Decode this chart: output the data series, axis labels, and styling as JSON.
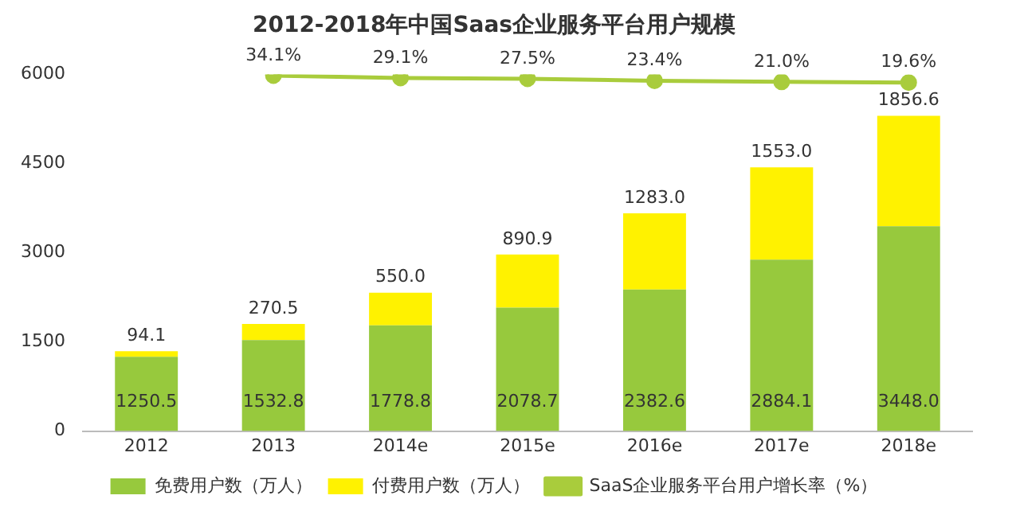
{
  "chart_data": {
    "type": "bar",
    "title": "2012-2018年中国Saas企业服务平台用户规模",
    "categories": [
      "2012",
      "2013",
      "2014e",
      "2015e",
      "2016e",
      "2017e",
      "2018e"
    ],
    "stacked": true,
    "series": [
      {
        "name": "免费用户数（万人）",
        "color": "#97c93d",
        "values": [
          1250.5,
          1532.8,
          1778.8,
          2078.7,
          2382.6,
          2884.1,
          3448
        ],
        "value_labels": [
          "1250.5",
          "1532.8",
          "1778.8",
          "2078.7",
          "2382.6",
          "2884.1",
          "3448.0"
        ]
      },
      {
        "name": "付费用户数（万人）",
        "color": "#fff200",
        "values": [
          94.1,
          270.5,
          550,
          890.9,
          1283,
          1553,
          1856.6
        ],
        "value_labels": [
          "94.1",
          "270.5",
          "550.0",
          "890.9",
          "1283.0",
          "1553.0",
          "1856.6"
        ]
      },
      {
        "name": "SaaS企业服务平台用户增长率（%）",
        "type": "line",
        "axis": "y2",
        "color": "#a9cc3c",
        "marker": "circle",
        "values": [
          null,
          34.1,
          29.1,
          27.5,
          23.4,
          21,
          19.6
        ],
        "value_labels": [
          null,
          "34.1%",
          "29.1%",
          "27.5%",
          "23.4%",
          "21.0%",
          "19.6%"
        ]
      }
    ],
    "ylim": [
      0,
      6000
    ],
    "yticks": [
      0,
      1500,
      3000,
      4500,
      6000
    ],
    "legend": "bottom",
    "grid": false
  }
}
